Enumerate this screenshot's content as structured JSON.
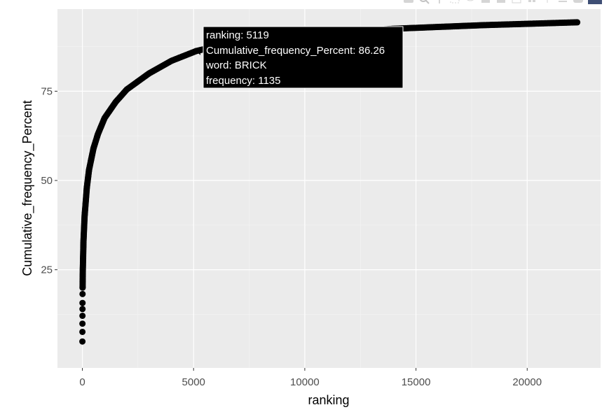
{
  "chart_data": {
    "type": "scatter",
    "title": "",
    "xlabel": "ranking",
    "ylabel": "Cumulative_frequency_Percent",
    "xlim": [
      -1120,
      23300
    ],
    "ylim": [
      -2.5,
      98
    ],
    "xticks": [
      0,
      5000,
      10000,
      15000,
      20000
    ],
    "yticks": [
      25,
      50,
      75
    ],
    "grid": true,
    "marker_color": "#000000",
    "panel_background": "#ebebeb",
    "points_sample": [
      {
        "x": 1,
        "y": 4.9
      },
      {
        "x": 2,
        "y": 7.6
      },
      {
        "x": 3,
        "y": 9.9
      },
      {
        "x": 4,
        "y": 12.1
      },
      {
        "x": 5,
        "y": 14.0
      },
      {
        "x": 6,
        "y": 15.7
      },
      {
        "x": 8,
        "y": 18.2
      },
      {
        "x": 10,
        "y": 20.0
      },
      {
        "x": 20,
        "y": 25.0
      },
      {
        "x": 50,
        "y": 33.0
      },
      {
        "x": 100,
        "y": 40.0
      },
      {
        "x": 200,
        "y": 48.0
      },
      {
        "x": 300,
        "y": 53.0
      },
      {
        "x": 500,
        "y": 59.0
      },
      {
        "x": 700,
        "y": 63.0
      },
      {
        "x": 1000,
        "y": 67.5
      },
      {
        "x": 1500,
        "y": 72.0
      },
      {
        "x": 2000,
        "y": 75.5
      },
      {
        "x": 3000,
        "y": 80.0
      },
      {
        "x": 4000,
        "y": 83.5
      },
      {
        "x": 5119,
        "y": 86.26
      },
      {
        "x": 7000,
        "y": 89.0
      },
      {
        "x": 10000,
        "y": 91.0
      },
      {
        "x": 14000,
        "y": 92.5
      },
      {
        "x": 18000,
        "y": 93.5
      },
      {
        "x": 22250,
        "y": 94.3
      }
    ],
    "hover": {
      "x": 5119,
      "y": 86.26,
      "lines": [
        "ranking:  5119",
        "Cumulative_frequency_Percent: 86.26",
        "word: BRICK",
        "frequency:    1135"
      ]
    }
  },
  "modebar": {
    "icons": [
      "camera-icon",
      "zoom-icon",
      "pan-icon",
      "box-select-icon",
      "lasso-icon",
      "zoom-in-icon",
      "zoom-out-icon",
      "autoscale-icon",
      "reset-axes-icon",
      "spike-lines-icon",
      "hover-closest-icon",
      "hover-compare-icon"
    ]
  }
}
